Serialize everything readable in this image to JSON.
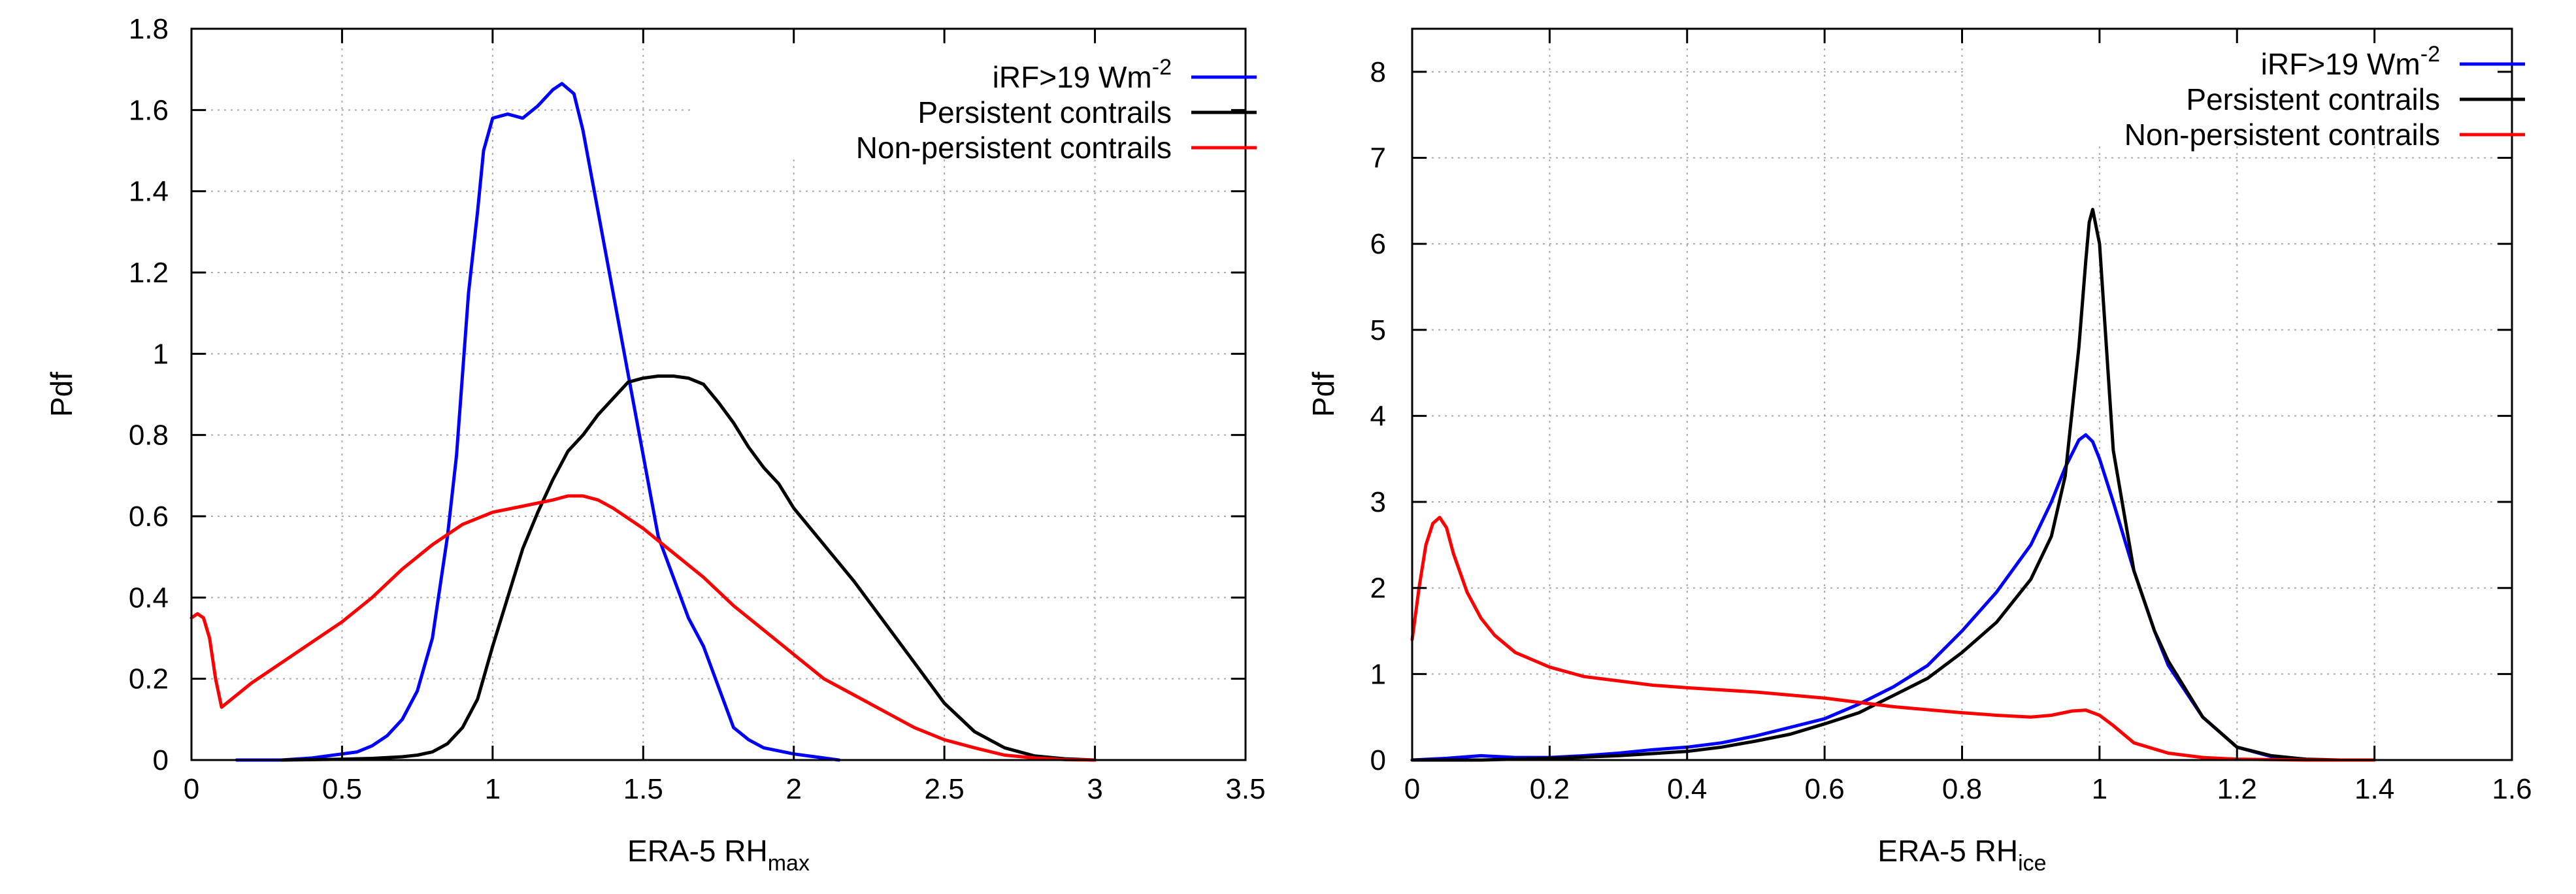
{
  "chart_data": [
    {
      "type": "line",
      "ylabel": "Pdf",
      "xlabel": "ERA-5 RH",
      "xlabel_sub": "max",
      "xlim": [
        0,
        3.5
      ],
      "ylim": [
        0,
        1.8
      ],
      "xticks": [
        "0",
        "0.5",
        "1",
        "1.5",
        "2",
        "2.5",
        "3",
        "3.5"
      ],
      "xtick_values": [
        0,
        0.5,
        1,
        1.5,
        2,
        2.5,
        3,
        3.5
      ],
      "yticks": [
        "0",
        "0.2",
        "0.4",
        "0.6",
        "0.8",
        "1",
        "1.2",
        "1.4",
        "1.6",
        "1.8"
      ],
      "ytick_values": [
        0,
        0.2,
        0.4,
        0.6,
        0.8,
        1.0,
        1.2,
        1.4,
        1.6,
        1.8
      ],
      "grid": true,
      "legend_position": "top-right",
      "series": [
        {
          "name": "iRF>19 Wm",
          "name_sup": "-2",
          "color": "#0000ff",
          "x": [
            0.15,
            0.22,
            0.3,
            0.4,
            0.5,
            0.55,
            0.6,
            0.65,
            0.7,
            0.75,
            0.8,
            0.85,
            0.88,
            0.9,
            0.92,
            0.95,
            0.97,
            1.0,
            1.05,
            1.1,
            1.15,
            1.2,
            1.23,
            1.27,
            1.3,
            1.35,
            1.4,
            1.45,
            1.5,
            1.55,
            1.6,
            1.65,
            1.7,
            1.75,
            1.8,
            1.85,
            1.9,
            2.0,
            2.1,
            2.15
          ],
          "y": [
            0.0,
            0.0,
            0.0,
            0.005,
            0.015,
            0.02,
            0.035,
            0.06,
            0.1,
            0.17,
            0.3,
            0.55,
            0.75,
            0.95,
            1.15,
            1.35,
            1.5,
            1.58,
            1.59,
            1.58,
            1.61,
            1.65,
            1.665,
            1.64,
            1.55,
            1.35,
            1.15,
            0.95,
            0.75,
            0.55,
            0.45,
            0.35,
            0.28,
            0.18,
            0.08,
            0.05,
            0.03,
            0.015,
            0.005,
            0.0
          ]
        },
        {
          "name": "Persistent contrails",
          "color": "#000000",
          "x": [
            0.3,
            0.5,
            0.6,
            0.7,
            0.75,
            0.8,
            0.85,
            0.9,
            0.95,
            1.0,
            1.05,
            1.1,
            1.15,
            1.2,
            1.25,
            1.3,
            1.35,
            1.4,
            1.45,
            1.5,
            1.55,
            1.6,
            1.65,
            1.7,
            1.75,
            1.8,
            1.85,
            1.9,
            1.95,
            2.0,
            2.1,
            2.2,
            2.3,
            2.4,
            2.5,
            2.6,
            2.7,
            2.8,
            2.9,
            3.0
          ],
          "y": [
            0.0,
            0.002,
            0.004,
            0.008,
            0.012,
            0.02,
            0.04,
            0.08,
            0.15,
            0.28,
            0.4,
            0.52,
            0.61,
            0.69,
            0.76,
            0.8,
            0.85,
            0.89,
            0.93,
            0.94,
            0.945,
            0.945,
            0.94,
            0.925,
            0.88,
            0.83,
            0.77,
            0.72,
            0.68,
            0.62,
            0.53,
            0.44,
            0.34,
            0.24,
            0.14,
            0.07,
            0.03,
            0.01,
            0.003,
            0.0
          ]
        },
        {
          "name": "Non-persistent contrails",
          "color": "#ff0000",
          "x": [
            0.0,
            0.02,
            0.04,
            0.06,
            0.08,
            0.1,
            0.2,
            0.3,
            0.4,
            0.5,
            0.6,
            0.7,
            0.8,
            0.9,
            1.0,
            1.1,
            1.2,
            1.25,
            1.3,
            1.35,
            1.4,
            1.5,
            1.6,
            1.7,
            1.8,
            1.9,
            2.0,
            2.1,
            2.2,
            2.3,
            2.4,
            2.5,
            2.6,
            2.7,
            2.8,
            2.9,
            3.0
          ],
          "y": [
            0.35,
            0.36,
            0.35,
            0.3,
            0.2,
            0.13,
            0.19,
            0.24,
            0.29,
            0.34,
            0.4,
            0.47,
            0.53,
            0.58,
            0.61,
            0.625,
            0.64,
            0.65,
            0.65,
            0.64,
            0.62,
            0.57,
            0.51,
            0.45,
            0.38,
            0.32,
            0.26,
            0.2,
            0.16,
            0.12,
            0.08,
            0.05,
            0.03,
            0.012,
            0.005,
            0.001,
            0.0
          ]
        }
      ]
    },
    {
      "type": "line",
      "ylabel": "Pdf",
      "xlabel": "ERA-5 RH",
      "xlabel_sub": "ice",
      "xlim": [
        0,
        1.6
      ],
      "ylim": [
        0,
        8.5
      ],
      "xticks": [
        "0",
        "0.2",
        "0.4",
        "0.6",
        "0.8",
        "1",
        "1.2",
        "1.4",
        "1.6"
      ],
      "xtick_values": [
        0,
        0.2,
        0.4,
        0.6,
        0.8,
        1.0,
        1.2,
        1.4,
        1.6
      ],
      "yticks": [
        "0",
        "1",
        "2",
        "3",
        "4",
        "5",
        "6",
        "7",
        "8"
      ],
      "ytick_values": [
        0,
        1,
        2,
        3,
        4,
        5,
        6,
        7,
        8
      ],
      "grid": true,
      "legend_position": "top-right",
      "series": [
        {
          "name": "iRF>19 Wm",
          "name_sup": "-2",
          "color": "#0000ff",
          "x": [
            0.0,
            0.05,
            0.1,
            0.15,
            0.2,
            0.25,
            0.3,
            0.35,
            0.4,
            0.45,
            0.5,
            0.55,
            0.6,
            0.65,
            0.7,
            0.75,
            0.8,
            0.85,
            0.9,
            0.93,
            0.95,
            0.97,
            0.98,
            0.99,
            1.0,
            1.02,
            1.05,
            1.08,
            1.1,
            1.15,
            1.2,
            1.25,
            1.3
          ],
          "y": [
            0.0,
            0.02,
            0.05,
            0.03,
            0.03,
            0.05,
            0.08,
            0.12,
            0.15,
            0.2,
            0.28,
            0.38,
            0.48,
            0.65,
            0.85,
            1.1,
            1.5,
            1.95,
            2.5,
            3.0,
            3.4,
            3.72,
            3.78,
            3.7,
            3.5,
            3.0,
            2.2,
            1.5,
            1.1,
            0.5,
            0.15,
            0.04,
            0.01
          ]
        },
        {
          "name": "Persistent contrails",
          "color": "#000000",
          "x": [
            0.0,
            0.1,
            0.2,
            0.3,
            0.4,
            0.45,
            0.5,
            0.55,
            0.6,
            0.65,
            0.7,
            0.75,
            0.8,
            0.85,
            0.9,
            0.93,
            0.95,
            0.97,
            0.98,
            0.985,
            0.99,
            1.0,
            1.01,
            1.02,
            1.05,
            1.08,
            1.1,
            1.15,
            1.2,
            1.25,
            1.3,
            1.35
          ],
          "y": [
            0.0,
            0.0,
            0.02,
            0.05,
            0.1,
            0.15,
            0.22,
            0.3,
            0.42,
            0.55,
            0.75,
            0.95,
            1.25,
            1.6,
            2.1,
            2.6,
            3.3,
            4.8,
            5.8,
            6.25,
            6.4,
            6.0,
            4.8,
            3.6,
            2.2,
            1.5,
            1.15,
            0.5,
            0.15,
            0.05,
            0.01,
            0.0
          ]
        },
        {
          "name": "Non-persistent contrails",
          "color": "#ff0000",
          "x": [
            0.0,
            0.01,
            0.02,
            0.03,
            0.04,
            0.05,
            0.06,
            0.08,
            0.1,
            0.12,
            0.15,
            0.2,
            0.25,
            0.3,
            0.35,
            0.4,
            0.5,
            0.6,
            0.7,
            0.8,
            0.85,
            0.9,
            0.93,
            0.96,
            0.98,
            1.0,
            1.02,
            1.05,
            1.1,
            1.15,
            1.2,
            1.3,
            1.4
          ],
          "y": [
            1.4,
            2.0,
            2.5,
            2.75,
            2.82,
            2.7,
            2.4,
            1.95,
            1.65,
            1.45,
            1.25,
            1.08,
            0.97,
            0.92,
            0.87,
            0.84,
            0.79,
            0.72,
            0.62,
            0.55,
            0.52,
            0.5,
            0.52,
            0.57,
            0.58,
            0.52,
            0.4,
            0.2,
            0.08,
            0.03,
            0.01,
            0.0,
            0.0
          ]
        }
      ]
    }
  ]
}
